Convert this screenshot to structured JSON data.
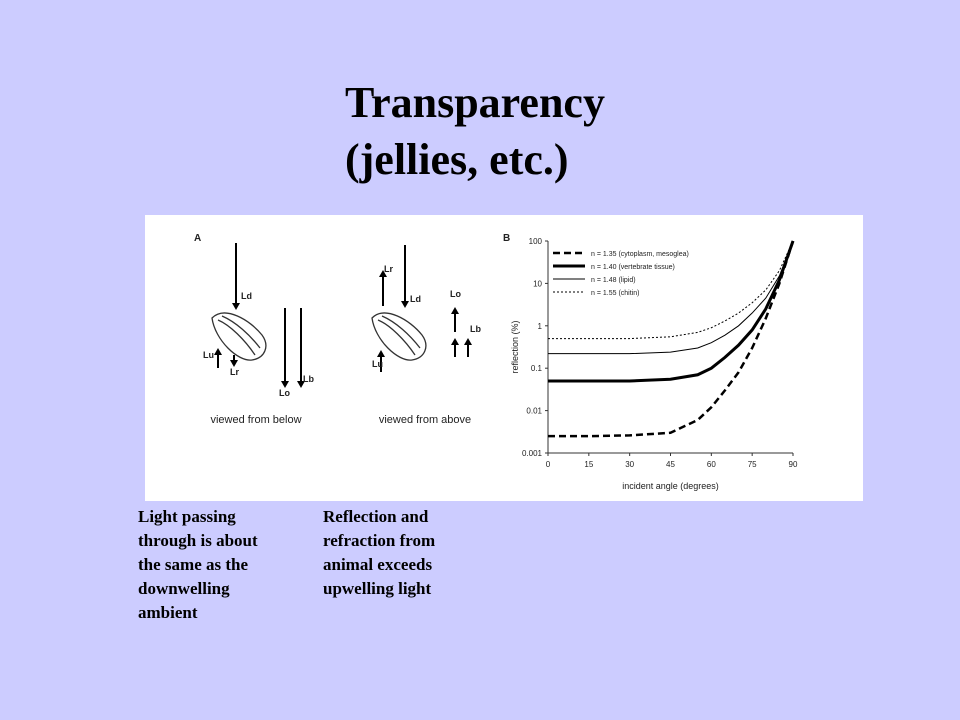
{
  "slide": {
    "title": [
      "Transparency",
      "(jellies, etc.)"
    ],
    "caption_left": [
      "Light passing",
      "through is about",
      "the same as the",
      "downwelling",
      "ambient"
    ],
    "caption_right": [
      "Reflection and",
      "refraction from",
      "animal exceeds",
      "upwelling light"
    ],
    "panel_a": {
      "label": "A",
      "below": {
        "labels": [
          "Ld",
          "Lu",
          "Lr",
          "Lb",
          "Lo"
        ],
        "caption": "viewed from below"
      },
      "above": {
        "labels": [
          "Lr",
          "Ld",
          "Lo",
          "Lu",
          "Lb"
        ],
        "caption": "viewed from above"
      }
    },
    "panel_b_label": "B"
  },
  "chart_data": {
    "type": "line",
    "x_label": "incident angle (degrees)",
    "y_label": "reflection (%)",
    "x": [
      0,
      15,
      30,
      45,
      55,
      60,
      65,
      70,
      75,
      80,
      85,
      90
    ],
    "series": [
      {
        "name": "n = 1.35 (cytoplasm, mesoglea)",
        "color": "#000000",
        "values": [
          0.0025,
          0.0025,
          0.0026,
          0.003,
          0.006,
          0.012,
          0.03,
          0.08,
          0.3,
          1.5,
          10,
          100
        ]
      },
      {
        "name": "n = 1.40 (vertebrate tissue)",
        "color": "#000000",
        "values": [
          0.05,
          0.05,
          0.05,
          0.055,
          0.07,
          0.1,
          0.18,
          0.35,
          0.8,
          2.5,
          12,
          100
        ]
      },
      {
        "name": "n = 1.48 (lipid)",
        "color": "#000000",
        "values": [
          0.22,
          0.22,
          0.22,
          0.24,
          0.3,
          0.4,
          0.6,
          1,
          2,
          4.5,
          15,
          100
        ]
      },
      {
        "name": "n = 1.55 (chitin)",
        "color": "#000000",
        "values": [
          0.5,
          0.5,
          0.5,
          0.55,
          0.7,
          0.9,
          1.3,
          2,
          3.5,
          7,
          20,
          100
        ]
      }
    ],
    "xlim": [
      0,
      90
    ],
    "xticks": [
      0,
      15,
      30,
      45,
      60,
      75,
      90
    ],
    "ylim": [
      0.001,
      100
    ],
    "yticks": [
      100,
      10,
      1,
      0.1,
      0.01,
      0.001
    ],
    "log_y": true,
    "legend": "top-left"
  }
}
